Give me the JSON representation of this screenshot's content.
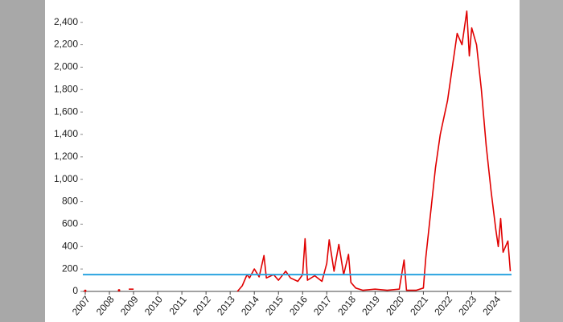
{
  "chart_data": {
    "type": "line",
    "x": [
      2007.0,
      2007.1,
      2008.4,
      2008.45,
      2008.8,
      2009.0,
      2009.05,
      2013.3,
      2013.5,
      2013.7,
      2013.8,
      2014.0,
      2014.2,
      2014.4,
      2014.5,
      2014.8,
      2015.0,
      2015.3,
      2015.5,
      2015.8,
      2016.0,
      2016.1,
      2016.2,
      2016.5,
      2016.8,
      2017.0,
      2017.1,
      2017.3,
      2017.5,
      2017.7,
      2017.9,
      2018.0,
      2018.2,
      2018.5,
      2019.0,
      2019.5,
      2020.0,
      2020.2,
      2020.3,
      2020.7,
      2021.0,
      2021.1,
      2021.3,
      2021.5,
      2021.7,
      2021.9,
      2022.0,
      2022.2,
      2022.4,
      2022.6,
      2022.8,
      2022.9,
      2023.0,
      2023.2,
      2023.4,
      2023.6,
      2023.8,
      2024.0,
      2024.1,
      2024.2,
      2024.3,
      2024.5,
      2024.6
    ],
    "series": [
      {
        "color": "#e00000",
        "values": [
          5,
          null,
          10,
          null,
          20,
          20,
          null,
          0,
          50,
          150,
          120,
          200,
          130,
          320,
          120,
          150,
          100,
          180,
          120,
          90,
          150,
          470,
          100,
          140,
          90,
          250,
          460,
          180,
          420,
          150,
          330,
          80,
          30,
          10,
          20,
          10,
          20,
          280,
          10,
          10,
          30,
          300,
          700,
          1100,
          1400,
          1600,
          1700,
          2000,
          2300,
          2200,
          2500,
          2100,
          2350,
          2200,
          1800,
          1300,
          900,
          550,
          400,
          650,
          350,
          450,
          180
        ]
      }
    ],
    "reference": {
      "value": 150,
      "color": "#29a3e0"
    },
    "xlim": [
      2006.9,
      2024.65
    ],
    "xticks": [
      2007,
      2008,
      2009,
      2010,
      2011,
      2012,
      2013,
      2014,
      2015,
      2016,
      2017,
      2018,
      2019,
      2020,
      2021,
      2022,
      2023,
      2024
    ],
    "ylim": [
      0,
      2520
    ],
    "yticks": [
      0,
      200,
      400,
      600,
      800,
      {
        "value": 1000,
        "label": "1,000"
      },
      {
        "value": 1200,
        "label": "1,200"
      },
      {
        "value": 1400,
        "label": "1,400"
      },
      {
        "value": 1600,
        "label": "1,600"
      },
      {
        "value": 1800,
        "label": "1,800"
      },
      {
        "value": 2000,
        "label": "2,000"
      },
      {
        "value": 2200,
        "label": "2,200"
      },
      {
        "value": 2400,
        "label": "2,400"
      }
    ]
  }
}
